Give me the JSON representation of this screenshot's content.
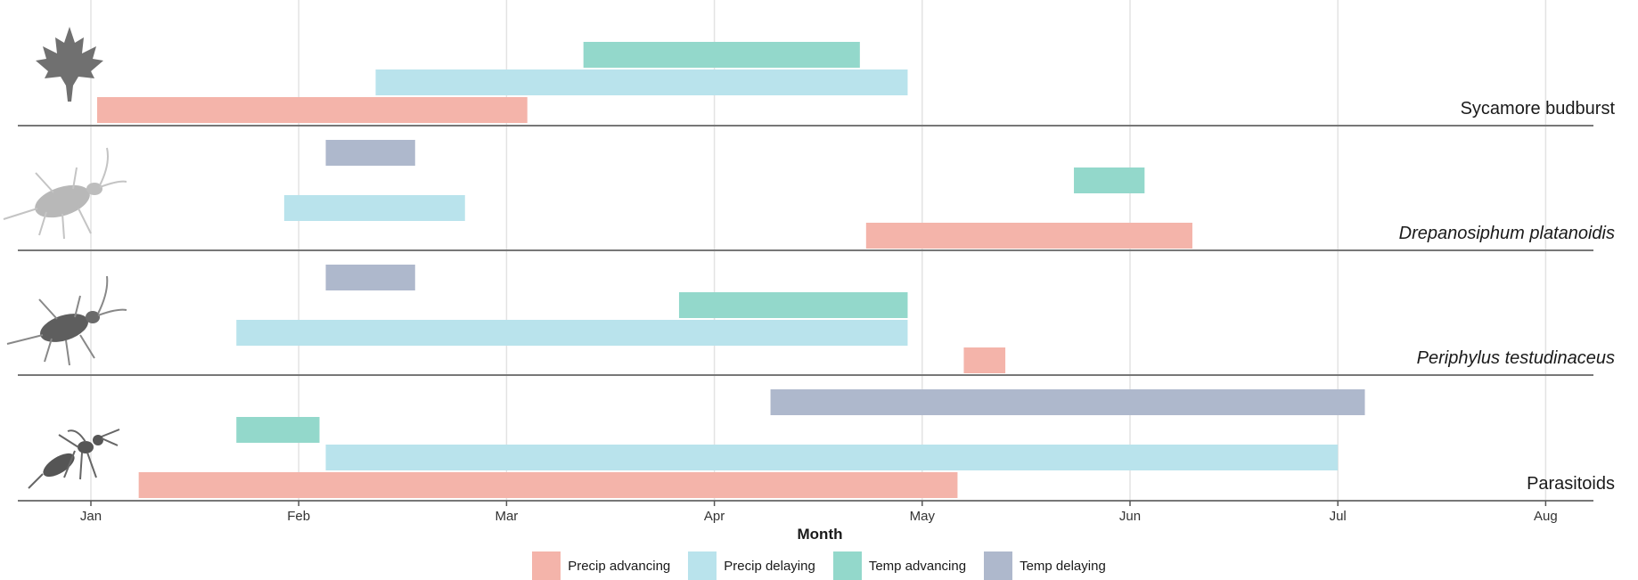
{
  "colors": {
    "Precip advancing": "#f4b4aa",
    "Precip delaying": "#b9e3ec",
    "Temp advancing": "#93d8cb",
    "Temp delaying": "#aeb8cc"
  },
  "chart_data": {
    "type": "bar",
    "subtype": "horizontal-range-timeline",
    "xlabel": "Month",
    "x_ticks": [
      "Jan",
      "Feb",
      "Mar",
      "Apr",
      "May",
      "Jun",
      "Jul",
      "Aug"
    ],
    "xlim": [
      0.97,
      8.2
    ],
    "legend_position": "bottom",
    "grid": true,
    "legend": [
      "Precip advancing",
      "Precip delaying",
      "Temp advancing",
      "Temp delaying"
    ],
    "panels": [
      {
        "label": "Sycamore budburst",
        "italic": false,
        "icon": "maple-leaf-icon",
        "bars": [
          {
            "series": "Temp advancing",
            "row": 0,
            "start": 3.37,
            "end": 4.7
          },
          {
            "series": "Precip delaying",
            "row": 1,
            "start": 2.37,
            "end": 4.93
          },
          {
            "series": "Precip advancing",
            "row": 2,
            "start": 1.03,
            "end": 3.1
          }
        ]
      },
      {
        "label": "Drepanosiphum platanoidis",
        "italic": true,
        "icon": "aphid-icon",
        "bars": [
          {
            "series": "Temp delaying",
            "row": 0,
            "start": 2.13,
            "end": 2.56
          },
          {
            "series": "Temp advancing",
            "row": 1,
            "start": 5.73,
            "end": 6.07
          },
          {
            "series": "Precip delaying",
            "row": 2,
            "start": 1.93,
            "end": 2.8
          },
          {
            "series": "Precip advancing",
            "row": 3,
            "start": 4.73,
            "end": 6.3
          }
        ]
      },
      {
        "label": "Periphylus testudinaceus",
        "italic": true,
        "icon": "aphid-icon",
        "bars": [
          {
            "series": "Temp delaying",
            "row": 0,
            "start": 2.13,
            "end": 2.56
          },
          {
            "series": "Temp advancing",
            "row": 1,
            "start": 3.83,
            "end": 4.93
          },
          {
            "series": "Precip delaying",
            "row": 2,
            "start": 1.7,
            "end": 4.93
          },
          {
            "series": "Precip advancing",
            "row": 3,
            "start": 5.2,
            "end": 5.4
          }
        ]
      },
      {
        "label": "Parasitoids",
        "italic": false,
        "icon": "wasp-icon",
        "bars": [
          {
            "series": "Temp delaying",
            "row": 0,
            "start": 4.27,
            "end": 7.13
          },
          {
            "series": "Temp advancing",
            "row": 1,
            "start": 1.7,
            "end": 2.1
          },
          {
            "series": "Precip delaying",
            "row": 2,
            "start": 2.13,
            "end": 7.0
          },
          {
            "series": "Precip advancing",
            "row": 3,
            "start": 1.23,
            "end": 5.17
          }
        ]
      }
    ]
  }
}
